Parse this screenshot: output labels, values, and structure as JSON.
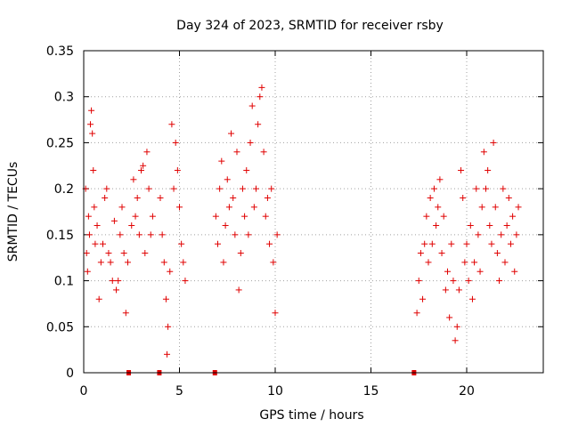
{
  "chart_data": {
    "type": "scatter",
    "title": "Day 324 of 2023, SRMTID for receiver rsby",
    "xlabel": "GPS time / hours",
    "ylabel": "SRMTID / TECUs",
    "xlim": [
      0,
      24
    ],
    "ylim": [
      0,
      0.35
    ],
    "xticks": [
      0,
      5,
      10,
      15,
      20
    ],
    "xtick_labels": [
      "0",
      "5",
      "10",
      "15",
      "20"
    ],
    "yticks": [
      0,
      0.05,
      0.1,
      0.15,
      0.2,
      0.25,
      0.3,
      0.35
    ],
    "ytick_labels": [
      "0",
      "0.05",
      "0.1",
      "0.15",
      "0.2",
      "0.25",
      "0.3",
      "0.35"
    ],
    "grid": true,
    "marker": "+",
    "color": "#e00000",
    "data_gaps_at_zero": [
      2.35,
      3.95,
      6.85,
      17.25
    ],
    "series": [
      {
        "name": "SRMTID",
        "points": [
          [
            0.1,
            0.2
          ],
          [
            0.15,
            0.13
          ],
          [
            0.2,
            0.11
          ],
          [
            0.25,
            0.17
          ],
          [
            0.3,
            0.15
          ],
          [
            0.35,
            0.27
          ],
          [
            0.4,
            0.285
          ],
          [
            0.45,
            0.26
          ],
          [
            0.5,
            0.22
          ],
          [
            0.55,
            0.18
          ],
          [
            0.6,
            0.14
          ],
          [
            0.7,
            0.16
          ],
          [
            0.8,
            0.08
          ],
          [
            0.9,
            0.12
          ],
          [
            1.0,
            0.14
          ],
          [
            1.1,
            0.19
          ],
          [
            1.2,
            0.2
          ],
          [
            1.3,
            0.13
          ],
          [
            1.4,
            0.12
          ],
          [
            1.5,
            0.1
          ],
          [
            1.6,
            0.165
          ],
          [
            1.7,
            0.09
          ],
          [
            1.8,
            0.1
          ],
          [
            1.9,
            0.15
          ],
          [
            2.0,
            0.18
          ],
          [
            2.1,
            0.13
          ],
          [
            2.2,
            0.065
          ],
          [
            2.3,
            0.12
          ],
          [
            2.5,
            0.16
          ],
          [
            2.6,
            0.21
          ],
          [
            2.7,
            0.17
          ],
          [
            2.8,
            0.19
          ],
          [
            2.9,
            0.15
          ],
          [
            3.0,
            0.22
          ],
          [
            3.1,
            0.225
          ],
          [
            3.2,
            0.13
          ],
          [
            3.3,
            0.24
          ],
          [
            3.4,
            0.2
          ],
          [
            3.5,
            0.15
          ],
          [
            3.6,
            0.17
          ],
          [
            4.0,
            0.19
          ],
          [
            4.1,
            0.15
          ],
          [
            4.2,
            0.12
          ],
          [
            4.3,
            0.08
          ],
          [
            4.35,
            0.02
          ],
          [
            4.4,
            0.05
          ],
          [
            4.5,
            0.11
          ],
          [
            4.6,
            0.27
          ],
          [
            4.7,
            0.2
          ],
          [
            4.8,
            0.25
          ],
          [
            4.9,
            0.22
          ],
          [
            5.0,
            0.18
          ],
          [
            5.1,
            0.14
          ],
          [
            5.2,
            0.12
          ],
          [
            5.3,
            0.1
          ],
          [
            6.9,
            0.17
          ],
          [
            7.0,
            0.14
          ],
          [
            7.1,
            0.2
          ],
          [
            7.2,
            0.23
          ],
          [
            7.3,
            0.12
          ],
          [
            7.4,
            0.16
          ],
          [
            7.5,
            0.21
          ],
          [
            7.6,
            0.18
          ],
          [
            7.7,
            0.26
          ],
          [
            7.8,
            0.19
          ],
          [
            7.9,
            0.15
          ],
          [
            8.0,
            0.24
          ],
          [
            8.1,
            0.09
          ],
          [
            8.2,
            0.13
          ],
          [
            8.3,
            0.2
          ],
          [
            8.4,
            0.17
          ],
          [
            8.5,
            0.22
          ],
          [
            8.6,
            0.15
          ],
          [
            8.7,
            0.25
          ],
          [
            8.8,
            0.29
          ],
          [
            8.9,
            0.18
          ],
          [
            9.0,
            0.2
          ],
          [
            9.1,
            0.27
          ],
          [
            9.2,
            0.3
          ],
          [
            9.3,
            0.31
          ],
          [
            9.4,
            0.24
          ],
          [
            9.5,
            0.17
          ],
          [
            9.6,
            0.19
          ],
          [
            9.7,
            0.14
          ],
          [
            9.8,
            0.2
          ],
          [
            9.9,
            0.12
          ],
          [
            10.0,
            0.065
          ],
          [
            10.1,
            0.15
          ],
          [
            17.4,
            0.065
          ],
          [
            17.5,
            0.1
          ],
          [
            17.6,
            0.13
          ],
          [
            17.7,
            0.08
          ],
          [
            17.8,
            0.14
          ],
          [
            17.9,
            0.17
          ],
          [
            18.0,
            0.12
          ],
          [
            18.1,
            0.19
          ],
          [
            18.2,
            0.14
          ],
          [
            18.3,
            0.2
          ],
          [
            18.4,
            0.16
          ],
          [
            18.5,
            0.18
          ],
          [
            18.6,
            0.21
          ],
          [
            18.7,
            0.13
          ],
          [
            18.8,
            0.17
          ],
          [
            18.9,
            0.09
          ],
          [
            19.0,
            0.11
          ],
          [
            19.1,
            0.06
          ],
          [
            19.2,
            0.14
          ],
          [
            19.3,
            0.1
          ],
          [
            19.4,
            0.035
          ],
          [
            19.5,
            0.05
          ],
          [
            19.6,
            0.09
          ],
          [
            19.7,
            0.22
          ],
          [
            19.8,
            0.19
          ],
          [
            19.9,
            0.12
          ],
          [
            20.0,
            0.14
          ],
          [
            20.1,
            0.1
          ],
          [
            20.2,
            0.16
          ],
          [
            20.3,
            0.08
          ],
          [
            20.4,
            0.12
          ],
          [
            20.5,
            0.2
          ],
          [
            20.6,
            0.15
          ],
          [
            20.7,
            0.11
          ],
          [
            20.8,
            0.18
          ],
          [
            20.9,
            0.24
          ],
          [
            21.0,
            0.2
          ],
          [
            21.1,
            0.22
          ],
          [
            21.2,
            0.16
          ],
          [
            21.3,
            0.14
          ],
          [
            21.4,
            0.25
          ],
          [
            21.5,
            0.18
          ],
          [
            21.6,
            0.13
          ],
          [
            21.7,
            0.1
          ],
          [
            21.8,
            0.15
          ],
          [
            21.9,
            0.2
          ],
          [
            22.0,
            0.12
          ],
          [
            22.1,
            0.16
          ],
          [
            22.2,
            0.19
          ],
          [
            22.3,
            0.14
          ],
          [
            22.4,
            0.17
          ],
          [
            22.5,
            0.11
          ],
          [
            22.6,
            0.15
          ],
          [
            22.7,
            0.18
          ]
        ]
      }
    ]
  }
}
